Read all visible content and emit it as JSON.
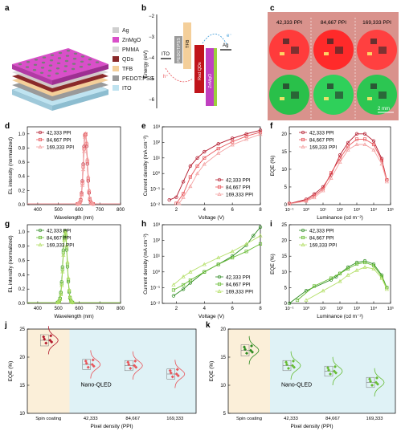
{
  "figure": {
    "panel_letters": [
      "a",
      "b",
      "c",
      "d",
      "e",
      "f",
      "g",
      "h",
      "i",
      "j",
      "k"
    ],
    "colors": {
      "red_dark": "#b2182b",
      "red_mid": "#e8555a",
      "red_light": "#f4a3a3",
      "green_dark": "#2e8b22",
      "green_mid": "#66bb33",
      "green_light": "#b5e06a",
      "bg_spin": "#fbefd9",
      "bg_nano": "#dff2f6"
    }
  },
  "panel_a": {
    "legend": [
      "Ag",
      "ZnMgO",
      "PMMA",
      "QDs",
      "TFB",
      "PEDOT:PSS",
      "ITO"
    ],
    "colors": [
      "#cfcfcf",
      "#d94fc9",
      "#d9d9d9",
      "#8a2a2a",
      "#f4cf9a",
      "#9a9a9a",
      "#bfe3f0"
    ]
  },
  "panel_b": {
    "ylabel": "Energy (eV)",
    "layers": [
      "ITO",
      "PEDOT:PSS",
      "TFB",
      "Red QDs",
      "ZnMgO",
      "Ag"
    ],
    "layer_colors": [
      "#000000",
      "#9a9a9a",
      "#f4cf9a",
      "#c0141b",
      "#c040c0",
      "#000000"
    ],
    "markers": [
      "h⁺",
      "e⁻"
    ]
  },
  "panel_c": {
    "columns": [
      "42,333 PPI",
      "84,667 PPI",
      "169,333 PPI"
    ],
    "rows": [
      "red",
      "green"
    ],
    "scale_bar": "2 mm"
  },
  "spectra_legend": [
    "42,333 PPI",
    "84,667 PPI",
    "169,333 PPI"
  ],
  "chart_data": [
    {
      "id": "d",
      "type": "line",
      "xlabel": "Wavelength (nm)",
      "ylabel": "EL intensity (normalized)",
      "xlim": [
        350,
        800
      ],
      "ylim": [
        0,
        1.1
      ],
      "xticks": [
        400,
        500,
        600,
        700,
        800
      ],
      "yticks": [
        0,
        0.2,
        0.4,
        0.6,
        0.8,
        1.0
      ],
      "peak": 630,
      "fwhm": 22,
      "series": [
        {
          "name": "42,333 PPI"
        },
        {
          "name": "84,667 PPI"
        },
        {
          "name": "169,333 PPI"
        }
      ]
    },
    {
      "id": "e",
      "type": "line",
      "yscale": "log",
      "xlabel": "Voltage (V)",
      "ylabel": "Current density (mA cm⁻²)",
      "xlim": [
        1,
        8
      ],
      "ylim": [
        0.01,
        1000
      ],
      "xticks": [
        2,
        4,
        6,
        8
      ],
      "yticks": [
        "10⁻²",
        "10⁻¹",
        "10⁰",
        "10¹",
        "10²",
        "10³"
      ],
      "series": [
        {
          "name": "42,333 PPI",
          "x": [
            1.5,
            2.0,
            2.5,
            3.0,
            3.5,
            4.0,
            5.0,
            6.0,
            7.0,
            8.0
          ],
          "y": [
            0.02,
            0.03,
            0.3,
            3,
            10,
            25,
            80,
            180,
            350,
            600
          ]
        },
        {
          "name": "84,667 PPI",
          "x": [
            2.0,
            2.5,
            3.0,
            3.5,
            4.0,
            5.0,
            6.0,
            7.0,
            8.0
          ],
          "y": [
            0.012,
            0.05,
            0.6,
            3,
            10,
            40,
            110,
            250,
            450
          ]
        },
        {
          "name": "169,333 PPI",
          "x": [
            2.2,
            2.5,
            3.0,
            3.5,
            4.0,
            5.0,
            6.0,
            7.0,
            8.0
          ],
          "y": [
            0.012,
            0.03,
            0.15,
            1,
            4,
            20,
            70,
            160,
            330
          ]
        }
      ]
    },
    {
      "id": "f",
      "type": "line",
      "xscale": "log",
      "xlabel": "Luminance (cd m⁻²)",
      "ylabel": "EQE (%)",
      "xlim": [
        0.1,
        100000
      ],
      "ylim": [
        0,
        22
      ],
      "xticks": [
        "10⁻¹",
        "10⁰",
        "10¹",
        "10²",
        "10³",
        "10⁴",
        "10⁵"
      ],
      "yticks": [
        0,
        5,
        10,
        15,
        20
      ],
      "series": [
        {
          "name": "42,333 PPI",
          "x": [
            0.1,
            1,
            3,
            10,
            30,
            100,
            300,
            1000,
            3000,
            10000,
            30000,
            60000
          ],
          "y": [
            0.3,
            1.5,
            3,
            5,
            8.5,
            14,
            17.5,
            20,
            20,
            18,
            13,
            7
          ]
        },
        {
          "name": "84,667 PPI",
          "x": [
            0.1,
            1,
            3,
            10,
            30,
            100,
            300,
            1000,
            3000,
            10000,
            30000,
            60000
          ],
          "y": [
            0.3,
            1.2,
            2.5,
            4.5,
            9,
            13,
            16.5,
            18.5,
            18.5,
            17,
            12.5,
            7
          ]
        },
        {
          "name": "169,333 PPI",
          "x": [
            0.1,
            1,
            3,
            10,
            30,
            100,
            300,
            1000,
            3000,
            10000,
            30000,
            60000
          ],
          "y": [
            0.2,
            1,
            2,
            4,
            7.5,
            12,
            15.5,
            17,
            17,
            15.5,
            11.5,
            6.5
          ]
        }
      ]
    },
    {
      "id": "g",
      "type": "line",
      "xlabel": "Wavelength (nm)",
      "ylabel": "EL intensity (normalized)",
      "xlim": [
        350,
        800
      ],
      "ylim": [
        0,
        1.1
      ],
      "xticks": [
        400,
        500,
        600,
        700,
        800
      ],
      "yticks": [
        0,
        0.2,
        0.4,
        0.6,
        0.8,
        1.0
      ],
      "peak": 532,
      "fwhm": 24,
      "series": [
        {
          "name": "42,333 PPI"
        },
        {
          "name": "84,667 PPI"
        },
        {
          "name": "169,333 PPI"
        }
      ]
    },
    {
      "id": "h",
      "type": "line",
      "yscale": "log",
      "xlabel": "Voltage (V)",
      "ylabel": "Current density (mA cm⁻²)",
      "xlim": [
        1,
        8
      ],
      "ylim": [
        0.01,
        1000
      ],
      "xticks": [
        2,
        4,
        6,
        8
      ],
      "yticks": [
        "10⁻²",
        "10⁻¹",
        "10⁰",
        "10¹",
        "10²",
        "10³"
      ],
      "series": [
        {
          "name": "42,333 PPI",
          "x": [
            1.8,
            2.5,
            3,
            4,
            5,
            6,
            7,
            7.5,
            8
          ],
          "y": [
            0.03,
            0.08,
            0.2,
            1,
            3,
            10,
            50,
            200,
            700
          ]
        },
        {
          "name": "84,667 PPI",
          "x": [
            1.8,
            2.5,
            3,
            4,
            5,
            6,
            7,
            8
          ],
          "y": [
            0.07,
            0.15,
            0.3,
            1,
            3,
            8,
            20,
            60
          ]
        },
        {
          "name": "169,333 PPI",
          "x": [
            1.8,
            2.5,
            3,
            4,
            5,
            6,
            7,
            8
          ],
          "y": [
            0.15,
            0.5,
            1,
            3,
            8,
            20,
            60,
            200
          ]
        }
      ]
    },
    {
      "id": "i",
      "type": "line",
      "xscale": "log",
      "xlabel": "Luminance (cd m⁻²)",
      "ylabel": "EQE (%)",
      "xlim": [
        0.1,
        100000
      ],
      "ylim": [
        0,
        25
      ],
      "xticks": [
        "10⁻¹",
        "10⁰",
        "10¹",
        "10²",
        "10³",
        "10⁴",
        "10⁵"
      ],
      "yticks": [
        0,
        5,
        10,
        15,
        20,
        25
      ],
      "series": [
        {
          "name": "42,333 PPI",
          "x": [
            0.1,
            1,
            30,
            60,
            100,
            300,
            1000,
            3000,
            10000,
            30000,
            60000
          ],
          "y": [
            0,
            4,
            7.5,
            8.5,
            9.5,
            11.5,
            13,
            13.5,
            12.5,
            9,
            5
          ]
        },
        {
          "name": "84,667 PPI",
          "x": [
            0.3,
            3,
            30,
            100,
            300,
            1000,
            3000,
            10000,
            30000,
            60000
          ],
          "y": [
            1,
            5.5,
            8,
            9.5,
            11,
            12.5,
            13,
            12,
            8.5,
            5
          ]
        },
        {
          "name": "169,333 PPI",
          "x": [
            1,
            10,
            100,
            300,
            1000,
            3000,
            10000,
            30000,
            60000
          ],
          "y": [
            1,
            4,
            7,
            9,
            10.5,
            11.5,
            11,
            8,
            4.5
          ]
        }
      ]
    },
    {
      "id": "j",
      "type": "scatter",
      "xlabel": "Pixel density (PPI)",
      "ylabel": "EQE (%)",
      "ylim": [
        10,
        25
      ],
      "yticks": [
        10,
        15,
        20,
        25
      ],
      "categories": [
        "Spin coating",
        "42,333",
        "84,667",
        "169,333"
      ],
      "means": [
        23.0,
        18.7,
        18.5,
        17.0
      ],
      "region_label": "Nano-QLED"
    },
    {
      "id": "k",
      "type": "scatter",
      "xlabel": "Pixel density (PPI)",
      "ylabel": "EQE (%)",
      "ylim": [
        5,
        20
      ],
      "yticks": [
        5,
        10,
        15,
        20
      ],
      "categories": [
        "Spin coating",
        "42,333",
        "84,667",
        "169,333"
      ],
      "means": [
        16.2,
        13.5,
        12.5,
        10.5
      ],
      "region_label": "Nano-QLED"
    }
  ]
}
